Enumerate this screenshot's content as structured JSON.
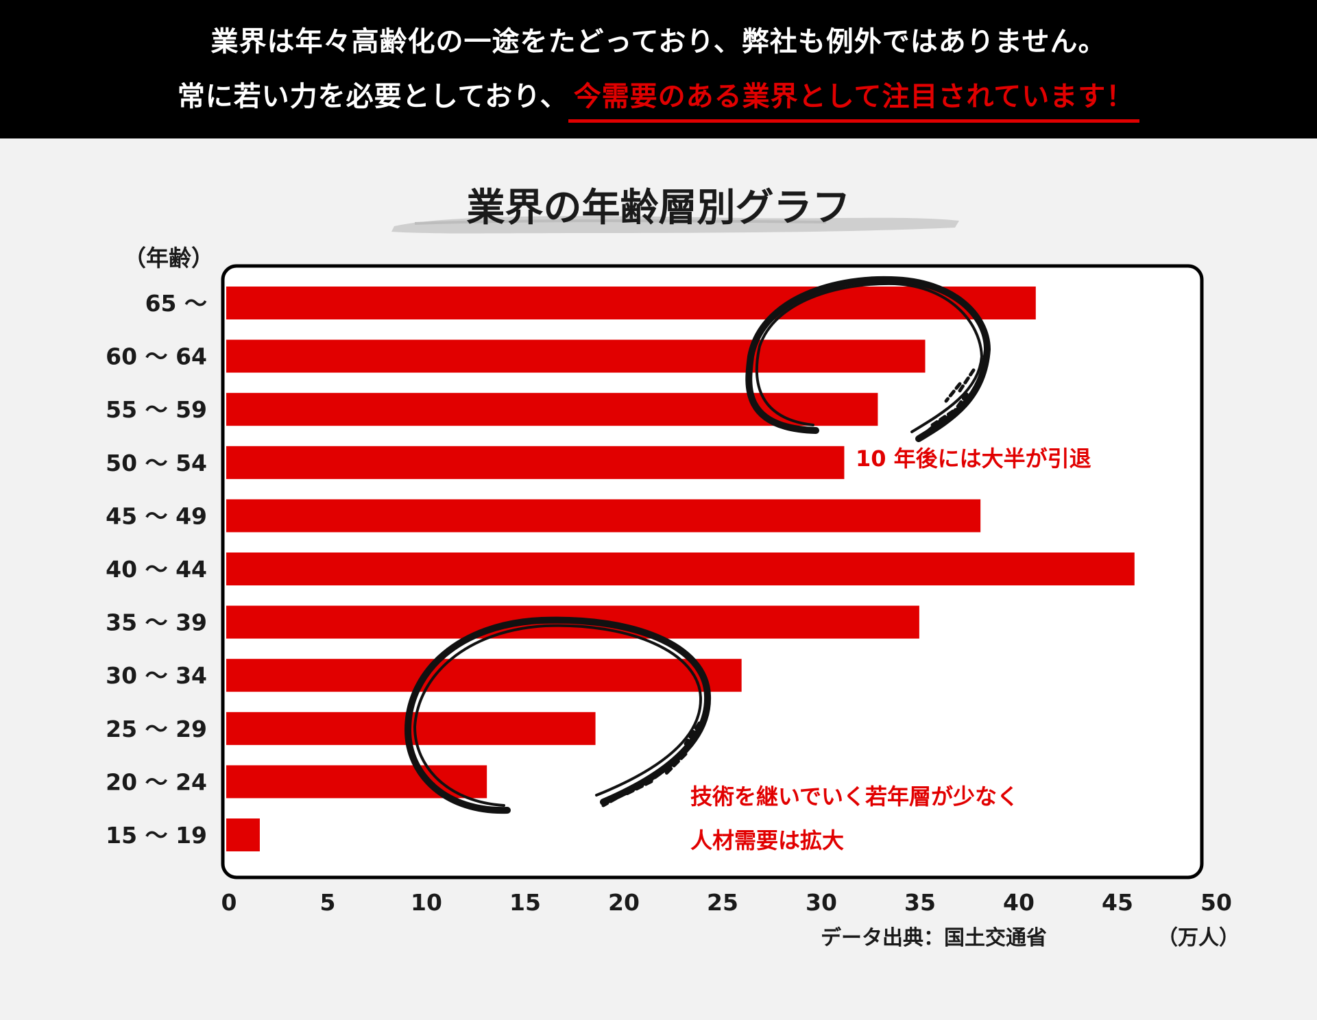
{
  "header": {
    "line1": "業界は年々高齢化の一途をたどっており、弊社も例外ではありません。",
    "line2_prefix": "常に若い力を必要としており、",
    "line2_highlight": "今需要のある業界として注目されています！"
  },
  "colors": {
    "bar": "#e10000",
    "accent_text": "#e10000",
    "header_bg": "#000000",
    "page_bg": "#f2f2f2",
    "plot_bg": "#ffffff"
  },
  "chart_data": {
    "type": "bar",
    "orientation": "horizontal",
    "title": "業界の年齢層別グラフ",
    "ylabel": "（年齢）",
    "xlabel": "（万人）",
    "source": "データ出典：国土交通省",
    "categories": [
      "65 〜",
      "60 〜 64",
      "55 〜 59",
      "50 〜 54",
      "45 〜 49",
      "40 〜 44",
      "35 〜 39",
      "30 〜 34",
      "25 〜 29",
      "20 〜 24",
      "15 〜 19"
    ],
    "values": [
      41,
      35.4,
      33,
      31.3,
      38.2,
      46,
      35.1,
      26.1,
      18.7,
      13.2,
      1.7
    ],
    "xlim": [
      0,
      50
    ],
    "xticks": [
      "0",
      "5",
      "10",
      "15",
      "20",
      "25",
      "30",
      "35",
      "40",
      "45",
      "50"
    ],
    "grid": false,
    "annotations": [
      {
        "lines": [
          "10 年後には大半が引退"
        ]
      },
      {
        "lines": [
          "技術を継いでいく若年層が少なく",
          "人材需要は拡大"
        ]
      }
    ]
  }
}
